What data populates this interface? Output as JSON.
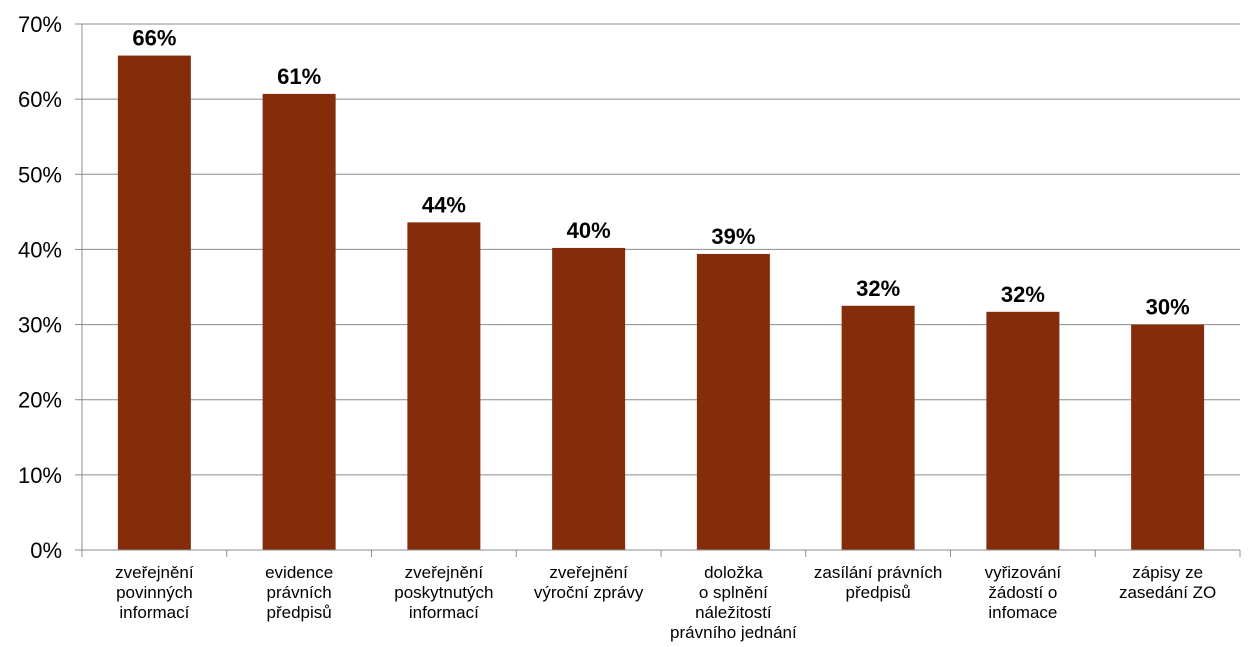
{
  "chart_data": {
    "type": "bar",
    "title": "",
    "xlabel": "",
    "ylabel": "",
    "ylim": [
      0,
      70
    ],
    "y_ticks": [
      "0%",
      "10%",
      "20%",
      "30%",
      "40%",
      "50%",
      "60%",
      "70%"
    ],
    "y_tick_values": [
      0,
      10,
      20,
      30,
      40,
      50,
      60,
      70
    ],
    "grid": "horizontal",
    "bar_color": "#852D0A",
    "categories": [
      [
        "zveřejnění",
        "povinných",
        "informací"
      ],
      [
        "evidence",
        "právních",
        "předpisů"
      ],
      [
        "zveřejnění",
        "poskytnutých",
        "informací"
      ],
      [
        "zveřejnění",
        "výroční zprávy"
      ],
      [
        "doložka",
        "o splnění",
        "náležitostí",
        "právního jednání"
      ],
      [
        "zasílání právních",
        "předpisů"
      ],
      [
        "vyřizování",
        "žádostí o",
        "infomace"
      ],
      [
        "zápisy ze",
        "zasedání ZO"
      ]
    ],
    "values": [
      65.8,
      60.7,
      43.6,
      40.2,
      39.4,
      32.5,
      31.7,
      30.0
    ],
    "value_labels": [
      "66%",
      "61%",
      "44%",
      "40%",
      "39%",
      "32%",
      "32%",
      "30%"
    ]
  }
}
